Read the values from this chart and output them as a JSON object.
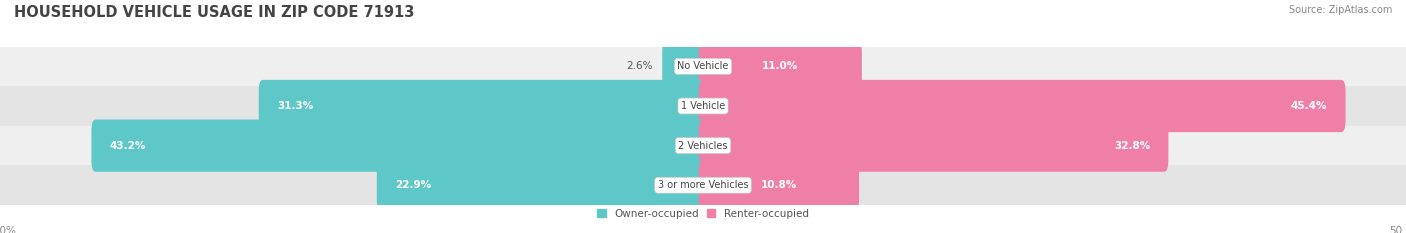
{
  "title": "HOUSEHOLD VEHICLE USAGE IN ZIP CODE 71913",
  "source": "Source: ZipAtlas.com",
  "categories": [
    "No Vehicle",
    "1 Vehicle",
    "2 Vehicles",
    "3 or more Vehicles"
  ],
  "owner_values": [
    2.6,
    31.3,
    43.2,
    22.9
  ],
  "renter_values": [
    11.0,
    45.4,
    32.8,
    10.8
  ],
  "owner_color": "#5ec8c8",
  "renter_color": "#f07fa8",
  "owner_label": "Owner-occupied",
  "renter_label": "Renter-occupied",
  "axis_limit": 50.0,
  "row_bg_even": "#efefef",
  "row_bg_odd": "#e4e4e4",
  "title_fontsize": 10.5,
  "source_fontsize": 7,
  "value_fontsize": 7.5,
  "axis_label_fontsize": 7.5,
  "category_fontsize": 7,
  "legend_fontsize": 7.5
}
